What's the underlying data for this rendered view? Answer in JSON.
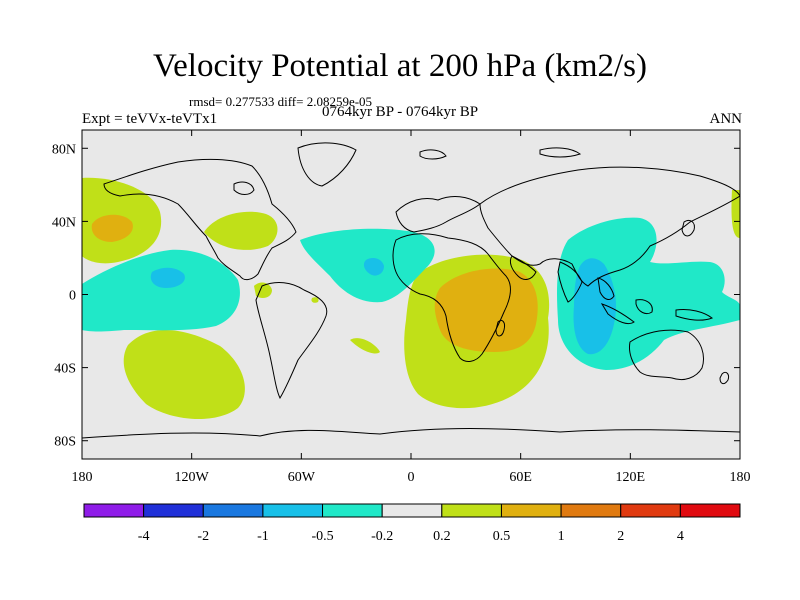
{
  "title": "Velocity Potential at 200 hPa (km2/s)",
  "stats_line": "rmsd= 0.277533 diff= 2.08259e-05",
  "experiment_label": "Expt = teVVx-teVTx1",
  "period_label": "0764kyr BP - 0764kyr BP",
  "season_label": "ANN",
  "map_data": {
    "projection": "cylindrical-equidistant",
    "lon_range": [
      -180,
      180
    ],
    "lat_range": [
      -90,
      90
    ],
    "lon_ticks": [
      "180",
      "120W",
      "60W",
      "0",
      "60E",
      "120E",
      "180"
    ],
    "lat_ticks": [
      "80N",
      "40N",
      "0",
      "40S",
      "80S"
    ],
    "colorbar": {
      "levels": [
        "-4",
        "-2",
        "-1",
        "-0.5",
        "-0.2",
        "0.2",
        "0.5",
        "1",
        "2",
        "4"
      ],
      "colors": [
        "#8f1ce8",
        "#2030d8",
        "#1a78e0",
        "#18c0e8",
        "#20e8c8",
        "#e8e8e8",
        "#c0e018",
        "#e0b010",
        "#e07a10",
        "#e03a10",
        "#e00a10"
      ]
    }
  }
}
